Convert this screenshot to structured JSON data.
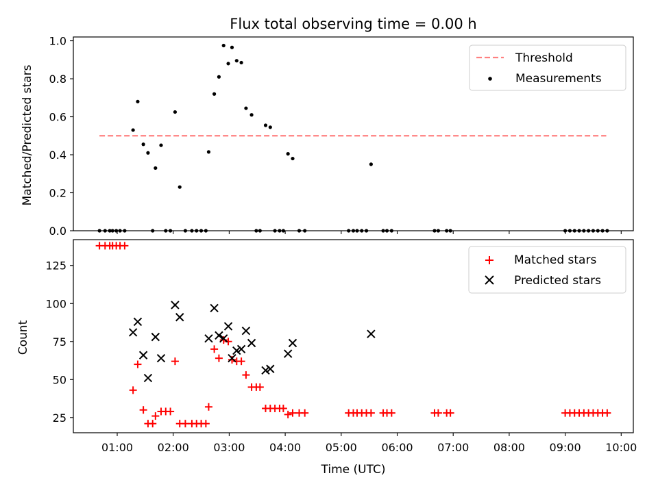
{
  "chart_data": [
    {
      "type": "scatter",
      "title": "Flux total observing time = 0.00 h",
      "xlabel": "",
      "ylabel": "Matched/Predicted stars",
      "xlim": [
        "00:13",
        "10:13"
      ],
      "ylim": [
        0,
        1.02
      ],
      "yticks": [
        0.0,
        0.2,
        0.4,
        0.6,
        0.8,
        1.0
      ],
      "yticklabels": [
        "0.0",
        "0.2",
        "0.4",
        "0.6",
        "0.8",
        "1.0"
      ],
      "legend_position": "top-right",
      "threshold": {
        "name": "Threshold",
        "value": 0.5,
        "x_start": "00:41",
        "x_end": "09:44",
        "color": "#ff8080",
        "style": "dashed"
      },
      "series": [
        {
          "name": "Measurements",
          "color": "#000000",
          "marker": "dot",
          "points": [
            [
              "00:41",
              0
            ],
            [
              "00:47",
              0
            ],
            [
              "00:52",
              0
            ],
            [
              "00:55",
              0
            ],
            [
              "00:59",
              0
            ],
            [
              "01:03",
              0
            ],
            [
              "01:08",
              0
            ],
            [
              "01:17",
              0.53
            ],
            [
              "01:22",
              0.68
            ],
            [
              "01:28",
              0.455
            ],
            [
              "01:33",
              0.41
            ],
            [
              "01:38",
              0
            ],
            [
              "01:41",
              0.33
            ],
            [
              "01:47",
              0.45
            ],
            [
              "01:52",
              0
            ],
            [
              "01:57",
              0
            ],
            [
              "02:02",
              0.625
            ],
            [
              "02:07",
              0.23
            ],
            [
              "02:13",
              0
            ],
            [
              "02:20",
              0
            ],
            [
              "02:25",
              0
            ],
            [
              "02:30",
              0
            ],
            [
              "02:35",
              0
            ],
            [
              "02:38",
              0.415
            ],
            [
              "02:44",
              0.72
            ],
            [
              "02:49",
              0.81
            ],
            [
              "02:54",
              0.975
            ],
            [
              "02:59",
              0.88
            ],
            [
              "03:03",
              0.965
            ],
            [
              "03:08",
              0.895
            ],
            [
              "03:13",
              0.885
            ],
            [
              "03:18",
              0.645
            ],
            [
              "03:24",
              0.61
            ],
            [
              "03:29",
              0
            ],
            [
              "03:33",
              0
            ],
            [
              "03:39",
              0.555
            ],
            [
              "03:44",
              0.545
            ],
            [
              "03:49",
              0
            ],
            [
              "03:54",
              0
            ],
            [
              "03:58",
              0
            ],
            [
              "04:03",
              0.405
            ],
            [
              "04:08",
              0.38
            ],
            [
              "04:15",
              0
            ],
            [
              "04:21",
              0
            ],
            [
              "05:08",
              0
            ],
            [
              "05:13",
              0
            ],
            [
              "05:17",
              0
            ],
            [
              "05:22",
              0
            ],
            [
              "05:27",
              0
            ],
            [
              "05:32",
              0.35
            ],
            [
              "05:45",
              0
            ],
            [
              "05:49",
              0
            ],
            [
              "05:54",
              0
            ],
            [
              "06:40",
              0
            ],
            [
              "06:44",
              0
            ],
            [
              "06:53",
              0
            ],
            [
              "06:57",
              0
            ],
            [
              "09:00",
              0
            ],
            [
              "09:05",
              0
            ],
            [
              "09:10",
              0
            ],
            [
              "09:15",
              0
            ],
            [
              "09:20",
              0
            ],
            [
              "09:25",
              0
            ],
            [
              "09:30",
              0
            ],
            [
              "09:35",
              0
            ],
            [
              "09:40",
              0
            ],
            [
              "09:45",
              0
            ]
          ]
        }
      ]
    },
    {
      "type": "scatter",
      "title": "",
      "xlabel": "Time (UTC)",
      "ylabel": "Count",
      "xlim": [
        "00:13",
        "10:13"
      ],
      "ylim": [
        15,
        142
      ],
      "xticks": [
        "01:00",
        "02:00",
        "03:00",
        "04:00",
        "05:00",
        "06:00",
        "07:00",
        "08:00",
        "09:00",
        "10:00"
      ],
      "yticks": [
        25,
        50,
        75,
        100,
        125
      ],
      "yticklabels": [
        "25",
        "50",
        "75",
        "100",
        "125"
      ],
      "legend_position": "top-right",
      "series": [
        {
          "name": "Matched stars",
          "color": "#ff0000",
          "marker": "plus",
          "points": [
            [
              "00:41",
              138
            ],
            [
              "00:47",
              138
            ],
            [
              "00:52",
              138
            ],
            [
              "00:55",
              138
            ],
            [
              "00:59",
              138
            ],
            [
              "01:03",
              138
            ],
            [
              "01:08",
              138
            ],
            [
              "01:17",
              43
            ],
            [
              "01:22",
              60
            ],
            [
              "01:28",
              30
            ],
            [
              "01:33",
              21
            ],
            [
              "01:38",
              21
            ],
            [
              "01:41",
              26
            ],
            [
              "01:47",
              29
            ],
            [
              "01:52",
              29
            ],
            [
              "01:57",
              29
            ],
            [
              "02:02",
              62
            ],
            [
              "02:07",
              21
            ],
            [
              "02:13",
              21
            ],
            [
              "02:20",
              21
            ],
            [
              "02:25",
              21
            ],
            [
              "02:30",
              21
            ],
            [
              "02:35",
              21
            ],
            [
              "02:38",
              32
            ],
            [
              "02:44",
              70
            ],
            [
              "02:49",
              64
            ],
            [
              "02:54",
              76
            ],
            [
              "02:59",
              75
            ],
            [
              "03:03",
              63
            ],
            [
              "03:08",
              62
            ],
            [
              "03:13",
              62
            ],
            [
              "03:18",
              53
            ],
            [
              "03:24",
              45
            ],
            [
              "03:29",
              45
            ],
            [
              "03:33",
              45
            ],
            [
              "03:39",
              31
            ],
            [
              "03:44",
              31
            ],
            [
              "03:49",
              31
            ],
            [
              "03:54",
              31
            ],
            [
              "03:58",
              31
            ],
            [
              "04:03",
              27
            ],
            [
              "04:08",
              28
            ],
            [
              "04:15",
              28
            ],
            [
              "04:21",
              28
            ],
            [
              "05:08",
              28
            ],
            [
              "05:13",
              28
            ],
            [
              "05:17",
              28
            ],
            [
              "05:22",
              28
            ],
            [
              "05:27",
              28
            ],
            [
              "05:32",
              28
            ],
            [
              "05:45",
              28
            ],
            [
              "05:49",
              28
            ],
            [
              "05:54",
              28
            ],
            [
              "06:40",
              28
            ],
            [
              "06:44",
              28
            ],
            [
              "06:53",
              28
            ],
            [
              "06:57",
              28
            ],
            [
              "09:00",
              28
            ],
            [
              "09:05",
              28
            ],
            [
              "09:10",
              28
            ],
            [
              "09:15",
              28
            ],
            [
              "09:20",
              28
            ],
            [
              "09:25",
              28
            ],
            [
              "09:30",
              28
            ],
            [
              "09:35",
              28
            ],
            [
              "09:40",
              28
            ],
            [
              "09:45",
              28
            ]
          ]
        },
        {
          "name": "Predicted stars",
          "color": "#000000",
          "marker": "x",
          "points": [
            [
              "01:17",
              81
            ],
            [
              "01:22",
              88
            ],
            [
              "01:28",
              66
            ],
            [
              "01:33",
              51
            ],
            [
              "01:41",
              78
            ],
            [
              "01:47",
              64
            ],
            [
              "02:02",
              99
            ],
            [
              "02:07",
              91
            ],
            [
              "02:38",
              77
            ],
            [
              "02:44",
              97
            ],
            [
              "02:49",
              79
            ],
            [
              "02:54",
              77
            ],
            [
              "02:59",
              85
            ],
            [
              "03:03",
              64
            ],
            [
              "03:08",
              69
            ],
            [
              "03:13",
              70
            ],
            [
              "03:18",
              82
            ],
            [
              "03:24",
              74
            ],
            [
              "03:39",
              56
            ],
            [
              "03:44",
              57
            ],
            [
              "04:03",
              67
            ],
            [
              "04:08",
              74
            ],
            [
              "05:32",
              80
            ]
          ]
        }
      ]
    }
  ]
}
